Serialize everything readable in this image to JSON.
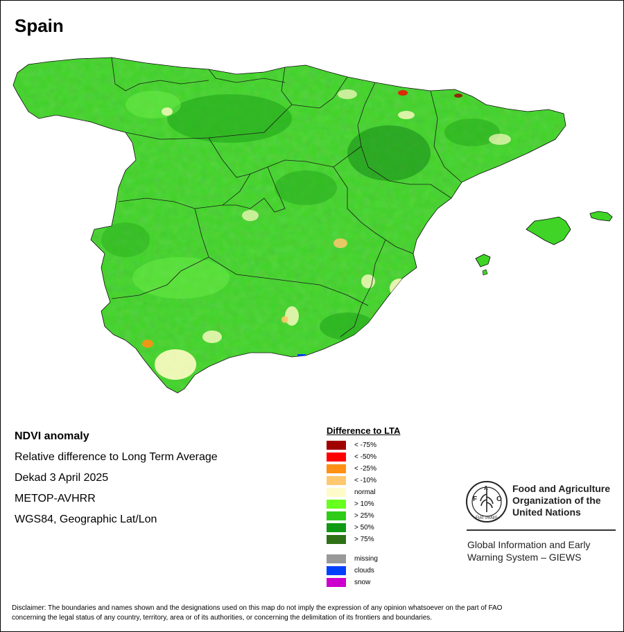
{
  "map": {
    "title": "Spain",
    "colors": {
      "base": "#3fd426",
      "light": "#6ef04a",
      "dark": "#22a61a",
      "darker": "#15891a",
      "normal": "#fffbc4",
      "border": "#1a1a1a"
    }
  },
  "info": {
    "heading": "NDVI anomaly",
    "lines": [
      "Relative difference to Long Term Average",
      "Dekad 3 April 2025",
      "METOP-AVHRR",
      "WGS84, Geographic Lat/Lon"
    ]
  },
  "legend": {
    "title": "Difference to LTA",
    "items": [
      {
        "label": "< -75%",
        "color": "#a00000"
      },
      {
        "label": "< -50%",
        "color": "#ff0000"
      },
      {
        "label": "< -25%",
        "color": "#ff9014"
      },
      {
        "label": "< -10%",
        "color": "#ffc86e"
      },
      {
        "label": "normal",
        "color": "#fffbc8"
      },
      {
        "label": "> 10%",
        "color": "#66ff1e"
      },
      {
        "label": "> 25%",
        "color": "#2ecc18"
      },
      {
        "label": "> 50%",
        "color": "#0f9a14"
      },
      {
        "label": "> 75%",
        "color": "#2e7016"
      }
    ],
    "extra": [
      {
        "label": "missing",
        "color": "#999999"
      },
      {
        "label": "clouds",
        "color": "#0040ff"
      },
      {
        "label": "snow",
        "color": "#cc00cc"
      }
    ]
  },
  "logo": {
    "org_line1": "Food and Agriculture",
    "org_line2": "Organization of the",
    "org_line3": "United Nations",
    "fao_letters": "FAO",
    "fiat_panis": "FIAT PANIS",
    "system_line1": "Global Information and Early",
    "system_line2": "Warning System – GIEWS"
  },
  "disclaimer": {
    "line1": "Disclaimer: The boundaries and names shown and the designations used on this map do not imply the expression of any opinion whatsoever on the part of FAO",
    "line2": "concerning the legal status of any country, territory, area or of its authorities, or concerning the delimitation of its frontiers and boundaries."
  }
}
